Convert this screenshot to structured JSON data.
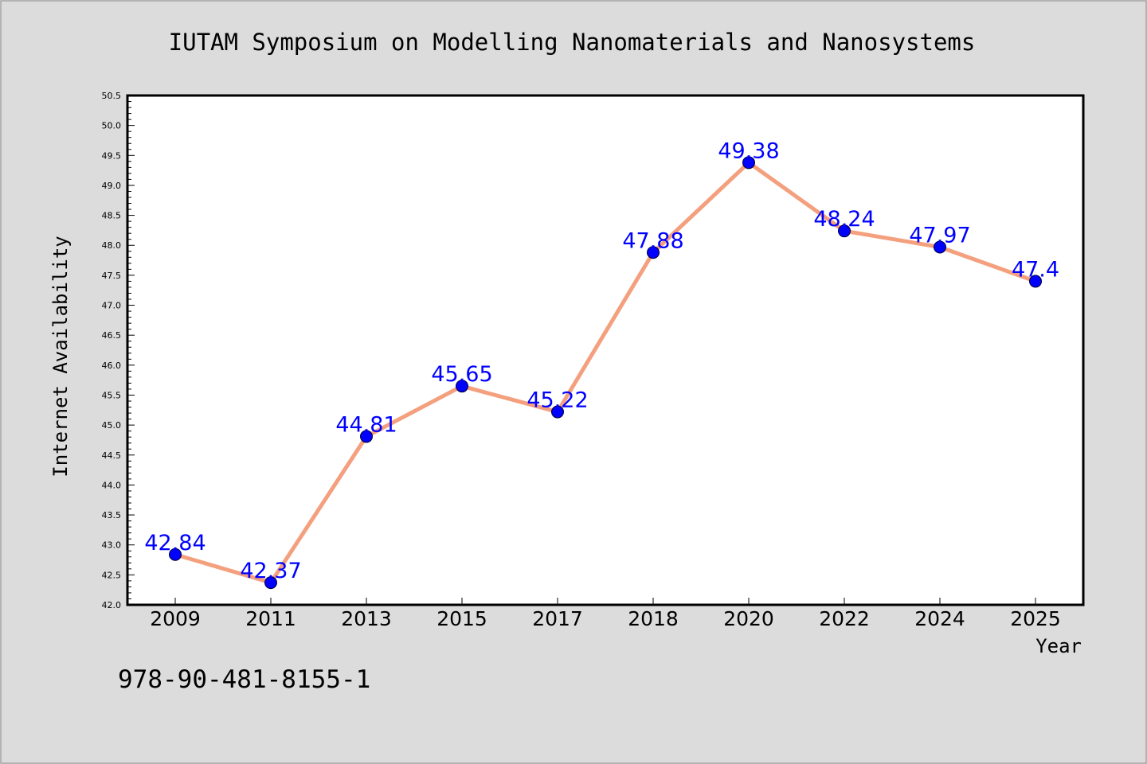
{
  "chart_data": {
    "type": "line",
    "title": "IUTAM Symposium on Modelling Nanomaterials and Nanosystems",
    "xlabel": "Year",
    "ylabel": "Internet Availability",
    "categories": [
      "2009",
      "2011",
      "2013",
      "2015",
      "2017",
      "2018",
      "2020",
      "2022",
      "2024",
      "2025"
    ],
    "series": [
      {
        "values": [
          42.84,
          42.37,
          44.81,
          45.65,
          45.22,
          47.88,
          49.38,
          48.24,
          47.97,
          47.4
        ],
        "data_labels": [
          "42.84",
          "42.37",
          "44.81",
          "45.65",
          "45.22",
          "47.88",
          "49.38",
          "48.24",
          "47.97",
          "47.4"
        ]
      }
    ],
    "ylim": [
      42.0,
      50.5
    ],
    "yticks": [
      "42.0",
      "42.5",
      "43.0",
      "43.5",
      "44.0",
      "44.5",
      "45.0",
      "45.5",
      "46.0",
      "46.5",
      "47.0",
      "47.5",
      "48.0",
      "48.5",
      "49.0",
      "49.5",
      "50.0",
      "50.5"
    ],
    "grid": false,
    "legend": "none",
    "colors": {
      "line": "#f4a07e",
      "marker": "#0000ff",
      "label": "#0000ff",
      "background": "#dcdcdc",
      "plot_background": "#ffffff"
    }
  },
  "footer": {
    "isbn": "978-90-481-8155-1"
  }
}
